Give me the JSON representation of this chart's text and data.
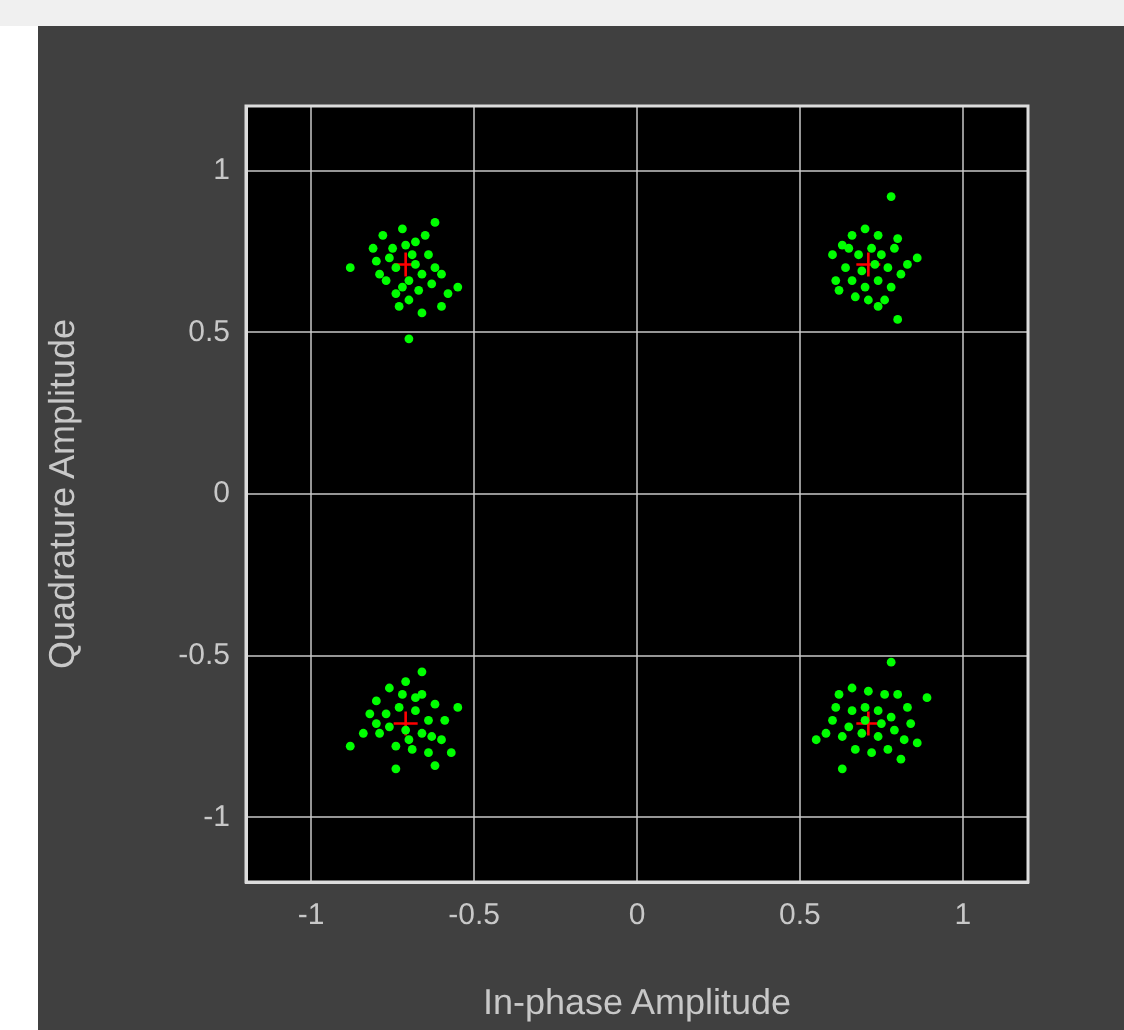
{
  "chart_data": {
    "type": "scatter",
    "xlabel": "In-phase Amplitude",
    "ylabel": "Quadrature Amplitude",
    "xlim": [
      -1.2,
      1.2
    ],
    "ylim": [
      -1.2,
      1.2
    ],
    "xticks": [
      -1,
      -0.5,
      0,
      0.5,
      1
    ],
    "yticks": [
      -1,
      -0.5,
      0,
      0.5,
      1
    ],
    "grid": true,
    "series": [
      {
        "color": "#00ff00",
        "marker": "circle",
        "x": [
          -0.88,
          -0.7,
          -0.62,
          -0.66,
          -0.58,
          -0.55,
          -0.6,
          -0.78,
          -0.75,
          -0.72,
          -0.68,
          -0.64,
          -0.8,
          -0.77,
          -0.74,
          -0.7,
          -0.66,
          -0.62,
          -0.74,
          -0.7,
          -0.67,
          -0.63,
          -0.79,
          -0.76,
          -0.69,
          -0.72,
          -0.65,
          -0.81,
          -0.6,
          -0.73,
          -0.68,
          -0.71,
          0.78,
          0.8,
          0.6,
          0.86,
          0.62,
          0.76,
          0.74,
          0.66,
          0.7,
          0.74,
          0.79,
          0.64,
          0.68,
          0.72,
          0.77,
          0.81,
          0.66,
          0.7,
          0.74,
          0.78,
          0.63,
          0.69,
          0.73,
          0.67,
          0.71,
          0.83,
          0.61,
          0.75,
          0.65,
          0.8,
          -0.88,
          -0.66,
          -0.74,
          -0.62,
          -0.55,
          -0.84,
          -0.8,
          -0.76,
          -0.71,
          -0.66,
          -0.62,
          -0.59,
          -0.6,
          -0.64,
          -0.69,
          -0.74,
          -0.79,
          -0.82,
          -0.77,
          -0.73,
          -0.68,
          -0.64,
          -0.66,
          -0.71,
          -0.76,
          -0.72,
          -0.68,
          -0.8,
          -0.63,
          -0.7,
          -0.57,
          0.78,
          0.89,
          0.63,
          0.55,
          0.86,
          0.62,
          0.66,
          0.71,
          0.76,
          0.8,
          0.83,
          0.84,
          0.82,
          0.77,
          0.72,
          0.67,
          0.63,
          0.6,
          0.61,
          0.66,
          0.7,
          0.74,
          0.78,
          0.79,
          0.74,
          0.69,
          0.65,
          0.7,
          0.75,
          0.58,
          0.81
        ],
        "values": [
          0.7,
          0.48,
          0.84,
          0.56,
          0.62,
          0.64,
          0.58,
          0.8,
          0.76,
          0.82,
          0.78,
          0.74,
          0.72,
          0.66,
          0.7,
          0.66,
          0.68,
          0.7,
          0.62,
          0.6,
          0.63,
          0.65,
          0.68,
          0.73,
          0.74,
          0.64,
          0.8,
          0.76,
          0.68,
          0.58,
          0.71,
          0.77,
          0.92,
          0.54,
          0.74,
          0.73,
          0.63,
          0.6,
          0.58,
          0.8,
          0.82,
          0.8,
          0.76,
          0.7,
          0.74,
          0.76,
          0.7,
          0.68,
          0.66,
          0.64,
          0.66,
          0.64,
          0.77,
          0.69,
          0.71,
          0.61,
          0.6,
          0.71,
          0.66,
          0.74,
          0.76,
          0.79,
          -0.78,
          -0.55,
          -0.85,
          -0.84,
          -0.66,
          -0.74,
          -0.64,
          -0.6,
          -0.58,
          -0.62,
          -0.65,
          -0.7,
          -0.76,
          -0.8,
          -0.79,
          -0.78,
          -0.74,
          -0.68,
          -0.68,
          -0.66,
          -0.67,
          -0.7,
          -0.74,
          -0.73,
          -0.72,
          -0.62,
          -0.63,
          -0.71,
          -0.75,
          -0.76,
          -0.8,
          -0.52,
          -0.63,
          -0.85,
          -0.76,
          -0.77,
          -0.62,
          -0.6,
          -0.61,
          -0.62,
          -0.62,
          -0.66,
          -0.71,
          -0.76,
          -0.79,
          -0.8,
          -0.79,
          -0.75,
          -0.7,
          -0.66,
          -0.67,
          -0.66,
          -0.67,
          -0.69,
          -0.73,
          -0.75,
          -0.74,
          -0.72,
          -0.7,
          -0.71,
          -0.74,
          -0.82
        ]
      },
      {
        "color": "#ff0000",
        "marker": "cross",
        "x": [
          -0.71,
          0.71,
          -0.71,
          0.71
        ],
        "values": [
          0.71,
          0.71,
          -0.71,
          -0.71
        ]
      }
    ]
  }
}
